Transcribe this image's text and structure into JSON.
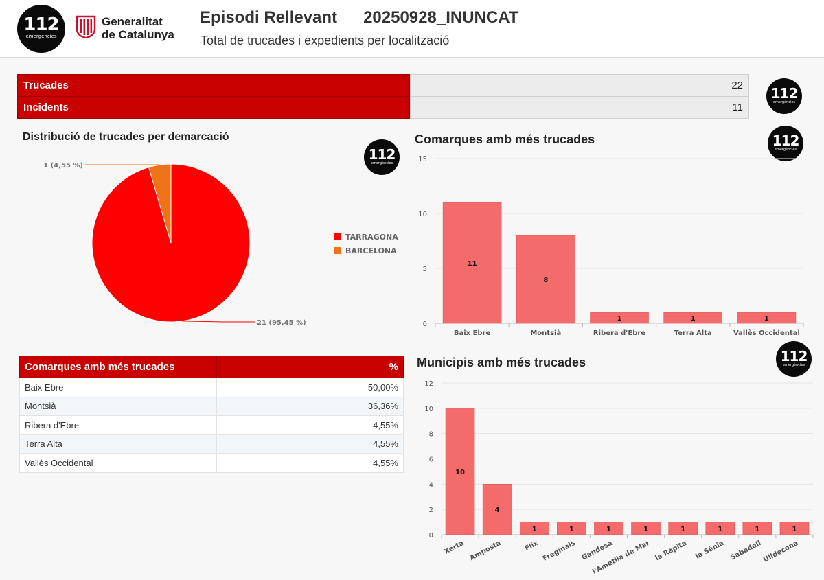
{
  "header": {
    "logo": {
      "number": "112",
      "caption": "emergències"
    },
    "gencat_name": [
      "Generalitat",
      "de Catalunya"
    ],
    "title": "Episodi Rellevant",
    "episode_code": "20250928_INUNCAT",
    "subtitle": "Total de trucades i expedients per localització"
  },
  "summary": [
    {
      "label": "Trucades",
      "value": "22"
    },
    {
      "label": "Incidents",
      "value": "11"
    }
  ],
  "brand_colors": {
    "red": "#c80000",
    "bar": "#f36b6b",
    "pie_red": "#ff0000",
    "pie_orange": "#f07318"
  },
  "chart_data": [
    {
      "type": "pie",
      "title": "Distribució de trucades per demarcació",
      "legend_position": "right",
      "slices": [
        {
          "name": "TARRAGONA",
          "value": 21,
          "label": "21 (95,45 %)",
          "color": "#ff0000"
        },
        {
          "name": "BARCELONA",
          "value": 1,
          "label": "1 (4,55 %)",
          "color": "#f07318"
        }
      ]
    },
    {
      "type": "bar",
      "title": "Comarques amb més trucades",
      "categories": [
        "Baix Ebre",
        "Montsià",
        "Ribera d'Ebre",
        "Terra Alta",
        "Vallès Occidental"
      ],
      "values": [
        11,
        8,
        1,
        1,
        1
      ],
      "ylim": [
        0,
        15
      ],
      "yticks": [
        0,
        5,
        10,
        15
      ],
      "grid": true,
      "color": "#f36b6b"
    },
    {
      "type": "bar",
      "title": "Municipis amb més trucades",
      "categories": [
        "Xerta",
        "Amposta",
        "Flix",
        "Freginals",
        "Gandesa",
        "l'Ametlla de Mar",
        "la Ràpita",
        "la Sénia",
        "Sabadell",
        "Ulldecona"
      ],
      "values": [
        10,
        4,
        1,
        1,
        1,
        1,
        1,
        1,
        1,
        1
      ],
      "ylim": [
        0,
        12
      ],
      "yticks": [
        0,
        2,
        4,
        6,
        8,
        10,
        12
      ],
      "grid": true,
      "color": "#f36b6b"
    }
  ],
  "table": {
    "headers": [
      "Comarques amb més trucades",
      "%"
    ],
    "rows": [
      {
        "name": "Baix Ebre",
        "pct": "50,00%"
      },
      {
        "name": "Montsià",
        "pct": "36,36%"
      },
      {
        "name": "Ribera d'Ebre",
        "pct": "4,55%"
      },
      {
        "name": "Terra Alta",
        "pct": "4,55%"
      },
      {
        "name": "Vallès Occidental",
        "pct": "4,55%"
      }
    ]
  }
}
